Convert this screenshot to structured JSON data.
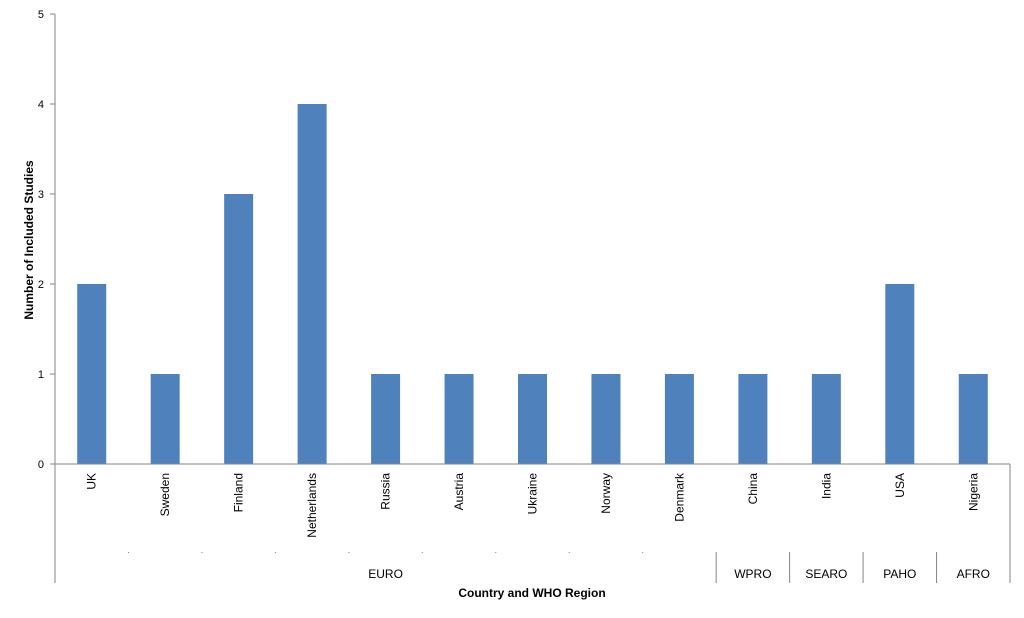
{
  "chart_data": {
    "type": "bar",
    "title": "",
    "xlabel": "Country and WHO Region",
    "ylabel": "Number of Included Studies",
    "ylim": [
      0,
      5
    ],
    "yticks": [
      0,
      1,
      2,
      3,
      4,
      5
    ],
    "grid": false,
    "legend": "none",
    "categories": [
      "UK",
      "Sweden",
      "Finland",
      "Netherlands",
      "Russia",
      "Austria",
      "Ukraine",
      "Norway",
      "Denmark",
      "China",
      "India",
      "USA",
      "Nigeria"
    ],
    "values": [
      2,
      1,
      3,
      4,
      1,
      1,
      1,
      1,
      1,
      1,
      1,
      2,
      1
    ],
    "groups": [
      {
        "label": "EURO",
        "count": 9
      },
      {
        "label": "WPRO",
        "count": 1
      },
      {
        "label": "SEARO",
        "count": 1
      },
      {
        "label": "PAHO",
        "count": 1
      },
      {
        "label": "AFRO",
        "count": 1
      }
    ],
    "bar_color": "#4f81bd"
  }
}
